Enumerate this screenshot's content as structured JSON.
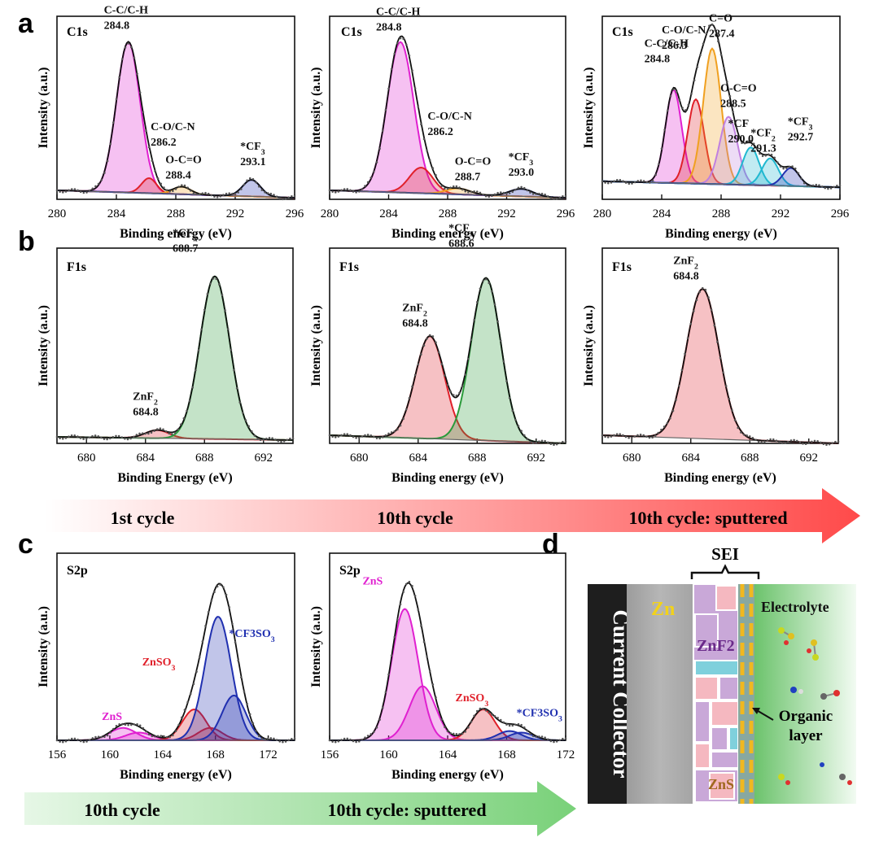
{
  "panel_letters": {
    "a": "a",
    "b": "b",
    "c": "c",
    "d": "d"
  },
  "colors": {
    "magenta": "#e020d0",
    "red": "#e0202a",
    "orange": "#f0a020",
    "blue": "#2030b0",
    "purple": "#c080e0",
    "cyan": "#20b8d0",
    "green": "#2a9a3a",
    "darkred": "#d02020",
    "envelope": "#111111",
    "raw": "#555555",
    "arrow_red": "#ff4a4a",
    "arrow_green": "#7fd67f"
  },
  "arrows": {
    "red": [
      "1st cycle",
      "10th cycle",
      "10th cycle: sputtered"
    ],
    "green": [
      "10th cycle",
      "10th cycle: sputtered"
    ]
  },
  "chart_data": [
    {
      "id": "a1",
      "type": "line",
      "title": "C1s",
      "xlabel": "Binding energy (eV)",
      "ylabel": "Intensity (a.u.)",
      "xlim": [
        280,
        296
      ],
      "xticks": [
        280,
        284,
        288,
        292,
        296
      ],
      "baseline": [
        0.06,
        0.01
      ],
      "series": [
        {
          "name": "C-C/C-H",
          "label": "C-C/C-H\n284.8",
          "center": 284.8,
          "height": 1.0,
          "width": 0.8,
          "color": "magenta"
        },
        {
          "name": "C-O/C-N",
          "label": "C-O/C-N\n286.2",
          "center": 286.2,
          "height": 0.1,
          "width": 0.5,
          "color": "red"
        },
        {
          "name": "O-C=O",
          "label": "O-C=O\n288.4",
          "center": 288.4,
          "height": 0.05,
          "width": 0.6,
          "color": "orange"
        },
        {
          "name": "*CF3",
          "label": "*CF3\n293.1",
          "center": 293.1,
          "height": 0.11,
          "width": 0.6,
          "color": "blue"
        }
      ]
    },
    {
      "id": "a2",
      "type": "line",
      "title": "C1s",
      "xlabel": "Binding energy (eV)",
      "ylabel": "Intensity (a.u.)",
      "xlim": [
        280,
        296
      ],
      "xticks": [
        280,
        284,
        288,
        292,
        296
      ],
      "baseline": [
        0.06,
        0.01
      ],
      "series": [
        {
          "name": "C-C/C-H",
          "label": "C-C/C-H\n284.8",
          "center": 284.8,
          "height": 1.0,
          "width": 0.9,
          "color": "magenta"
        },
        {
          "name": "C-O/C-N",
          "label": "C-O/C-N\n286.2",
          "center": 286.2,
          "height": 0.17,
          "width": 0.8,
          "color": "red"
        },
        {
          "name": "O-C=O",
          "label": "O-C=O\n288.7",
          "center": 288.7,
          "height": 0.04,
          "width": 0.8,
          "color": "orange"
        },
        {
          "name": "*CF3",
          "label": "*CF3\n293.0",
          "center": 293.0,
          "height": 0.05,
          "width": 0.8,
          "color": "blue"
        }
      ]
    },
    {
      "id": "a3",
      "type": "line",
      "title": "C1s",
      "xlabel": "Binding energy (eV)",
      "ylabel": "Intensity (a.u.)",
      "xlim": [
        280,
        296
      ],
      "xticks": [
        280,
        284,
        288,
        292,
        296
      ],
      "baseline": [
        0.12,
        0.08
      ],
      "series": [
        {
          "name": "C-C/C-H",
          "label": "C-C/C-H\n284.8",
          "center": 284.8,
          "height": 0.62,
          "width": 0.55,
          "color": "magenta"
        },
        {
          "name": "C-O/C-N",
          "label": "C-O/C-N\n286.3",
          "center": 286.3,
          "height": 0.56,
          "width": 0.55,
          "color": "red"
        },
        {
          "name": "C=O",
          "label": "C=O\n287.4",
          "center": 287.4,
          "height": 0.9,
          "width": 0.6,
          "color": "orange"
        },
        {
          "name": "O-C=O",
          "label": "O-C=O\n288.5",
          "center": 288.5,
          "height": 0.45,
          "width": 0.6,
          "color": "purple"
        },
        {
          "name": "*CF",
          "label": "*CF\n290.0",
          "center": 290.0,
          "height": 0.25,
          "width": 0.55,
          "color": "cyan"
        },
        {
          "name": "*CF2",
          "label": "*CF2\n291.3",
          "center": 291.3,
          "height": 0.18,
          "width": 0.55,
          "color": "cyan"
        },
        {
          "name": "*CF3",
          "label": "*CF3\n292.7",
          "center": 292.7,
          "height": 0.12,
          "width": 0.55,
          "color": "blue"
        }
      ]
    },
    {
      "id": "b1",
      "type": "line",
      "title": "F1s",
      "xlabel": "Binding Energy (eV)",
      "ylabel": "Intensity (a.u.)",
      "xlim": [
        678,
        694
      ],
      "xticks": [
        680,
        684,
        688,
        692
      ],
      "baseline": [
        0.04,
        0.02
      ],
      "series": [
        {
          "name": "ZnF2",
          "label": "ZnF2\n684.8",
          "center": 684.8,
          "height": 0.05,
          "width": 0.8,
          "color": "red"
        },
        {
          "name": "*CFx",
          "label": "*CFx\n688.7",
          "center": 688.7,
          "height": 1.0,
          "width": 1.0,
          "color": "green"
        }
      ]
    },
    {
      "id": "b2",
      "type": "line",
      "title": "F1s",
      "xlabel": "Binding energy (eV)",
      "ylabel": "Intensity (a.u.)",
      "xlim": [
        678,
        694
      ],
      "xticks": [
        680,
        684,
        688,
        692
      ],
      "baseline": [
        0.05,
        0.0
      ],
      "series": [
        {
          "name": "ZnF2",
          "label": "ZnF2\n684.8",
          "center": 684.8,
          "height": 0.63,
          "width": 1.0,
          "color": "red"
        },
        {
          "name": "*CFx",
          "label": "*CFx\n688.6",
          "center": 688.6,
          "height": 1.0,
          "width": 1.0,
          "color": "green"
        }
      ]
    },
    {
      "id": "b3",
      "type": "line",
      "title": "F1s",
      "xlabel": "Binding energy (eV)",
      "ylabel": "Intensity (a.u.)",
      "xlim": [
        678,
        694
      ],
      "xticks": [
        680,
        684,
        688,
        692
      ],
      "baseline": [
        0.05,
        0.0
      ],
      "series": [
        {
          "name": "ZnF2",
          "label": "ZnF2\n684.8",
          "center": 684.8,
          "height": 0.92,
          "width": 1.1,
          "color": "red"
        }
      ]
    },
    {
      "id": "c1",
      "type": "line",
      "title": "S2p",
      "xlabel": "Binding energy (eV)",
      "ylabel": "Intensity (a.u.)",
      "xlim": [
        156,
        174
      ],
      "xticks": [
        156,
        160,
        164,
        168,
        172
      ],
      "baseline": [
        0.0,
        0.0
      ],
      "series": [
        {
          "name": "ZnS",
          "label": "ZnS",
          "center": 161.0,
          "height": 0.08,
          "width": 1.0,
          "color": "magenta"
        },
        {
          "name": "ZnS",
          "label": "",
          "center": 162.2,
          "height": 0.05,
          "width": 1.0,
          "color": "magenta"
        },
        {
          "name": "ZnSO3",
          "label": "ZnSO3",
          "center": 166.4,
          "height": 0.2,
          "width": 0.9,
          "color": "red"
        },
        {
          "name": "ZnSO3",
          "label": "",
          "center": 167.6,
          "height": 0.08,
          "width": 0.9,
          "color": "red"
        },
        {
          "name": "*CF3SO3",
          "label": "",
          "center": 168.2,
          "height": 0.8,
          "width": 1.0,
          "color": "blue"
        },
        {
          "name": "*CF3SO3",
          "label": "*CF3SO3",
          "center": 169.4,
          "height": 0.29,
          "width": 0.9,
          "color": "blue"
        }
      ]
    },
    {
      "id": "c2",
      "type": "line",
      "title": "S2p",
      "xlabel": "Binding energy (eV)",
      "ylabel": "Intensity (a.u.)",
      "xlim": [
        156,
        172
      ],
      "xticks": [
        156,
        160,
        164,
        168,
        172
      ],
      "baseline": [
        0.0,
        0.0
      ],
      "series": [
        {
          "name": "ZnS",
          "label": "ZnS",
          "center": 161.1,
          "height": 0.85,
          "width": 0.9,
          "color": "magenta"
        },
        {
          "name": "ZnS",
          "label": "",
          "center": 162.3,
          "height": 0.35,
          "width": 0.9,
          "color": "magenta"
        },
        {
          "name": "ZnSO3",
          "label": "ZnSO3",
          "center": 166.4,
          "height": 0.2,
          "width": 0.8,
          "color": "red"
        },
        {
          "name": "*CF3SO3",
          "label": "",
          "center": 168.2,
          "height": 0.06,
          "width": 0.8,
          "color": "blue"
        },
        {
          "name": "*CF3SO3",
          "label": "*CF3SO3",
          "center": 169.0,
          "height": 0.05,
          "width": 0.8,
          "color": "blue"
        }
      ]
    }
  ],
  "schematic": {
    "sei": "SEI",
    "current_collector": "Current Collector",
    "zn": "Zn",
    "znf2": "ZnF2",
    "zns": "ZnS",
    "electrolyte": "Electrolyte",
    "organic_layer_1": "Organic",
    "organic_layer_2": "layer"
  }
}
